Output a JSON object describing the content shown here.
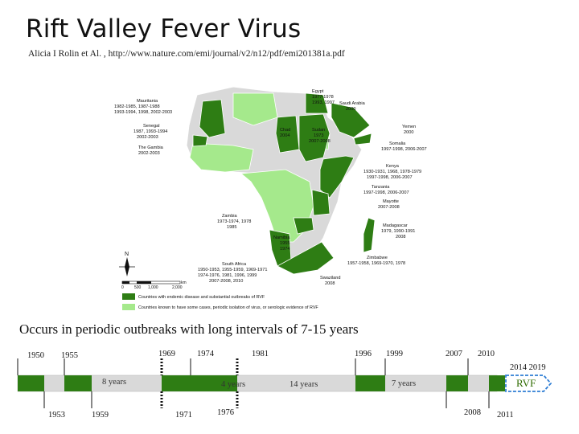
{
  "header": {
    "title": "Rift Valley Fever Virus",
    "citation": "Alicia I Rolin et Al. , http://www.nature.com/emi/journal/v2/n12/pdf/emi201381a.pdf"
  },
  "map": {
    "labels": {
      "mauritania": "Mauritania",
      "mauritania_y1": "1982-1985, 1987-1988",
      "mauritania_y2": "1993-1994, 1998, 2002-2003",
      "senegal": "Senegal",
      "senegal_y1": "1987, 1993-1994",
      "senegal_y2": "2002-2003",
      "gambia": "The Gambia",
      "gambia_y": "2002-2003",
      "egypt": "Egypt",
      "egypt_y1": "1977-1978",
      "egypt_y2": "1993, 1997",
      "saudi": "Saudi Arabia",
      "saudi_y": "2000",
      "yemen": "Yemen",
      "yemen_y": "2000",
      "chad": "Chad",
      "chad_y": "2004",
      "sudan": "Sudan",
      "sudan_y1": "1973",
      "sudan_y2": "2007-2008",
      "somalia": "Somalia",
      "somalia_y": "1997-1998, 2006-2007",
      "kenya": "Kenya",
      "kenya_y1": "1930-1931, 1968, 1978-1979",
      "kenya_y2": "1997-1998, 2006-2007",
      "tanzania": "Tanzania",
      "tanzania_y": "1997-1998, 2006-2007",
      "mayotte": "Mayotte",
      "mayotte_y": "2007-2008",
      "zambia": "Zambia",
      "zambia_y1": "1973-1974, 1978",
      "zambia_y2": "1985",
      "madagascar": "Madagascar",
      "madagascar_y1": "1979, 1990-1991",
      "madagascar_y2": "2008",
      "namibia": "Namibia",
      "namibia_y1": "1955",
      "namibia_y2": "1974",
      "zimbabwe": "Zimbabwe",
      "zimbabwe_y": "1957-1958, 1969-1970, 1978",
      "southafrica": "South Africa",
      "southafrica_y1": "1950-1953, 1955-1959, 1969-1971",
      "southafrica_y2": "1974-1976, 1981, 1996, 1999",
      "southafrica_y3": "2007-2008, 2010",
      "swaziland": "Swaziland",
      "swaziland_y": "2008"
    },
    "north": "N",
    "scale": [
      "0",
      "500",
      "1,000",
      "2,000"
    ],
    "scale_unit": "km",
    "legend": [
      {
        "label": "Countries with endemic disease and substantial outbreaks of RVF",
        "color": "#2e7d14"
      },
      {
        "label": "Countries known to have some cases, periodic isolation of virus, or serologic evidence of RVF",
        "color": "#a5e98c"
      }
    ],
    "colors": {
      "dark": "#2e7d14",
      "light": "#a5e98c",
      "none": "#d9d9d9"
    }
  },
  "caption": "Occurs in periodic outbreaks with long intervals of 7-15 years",
  "timeline": {
    "top_years": [
      "1950",
      "1955",
      "1969",
      "1974",
      "1981",
      "1996",
      "1999",
      "2007",
      "2010",
      "2014 2019"
    ],
    "bottom_years": [
      "1953",
      "1959",
      "1971",
      "1976",
      "2008",
      "2011"
    ],
    "gaps": [
      "8 years",
      "4 years",
      "14 years",
      "7 years"
    ],
    "badge": "RVF",
    "colors": {
      "bar": "#d9d9d9",
      "block": "#2e7d14",
      "badge": "#2e7dd4"
    }
  }
}
